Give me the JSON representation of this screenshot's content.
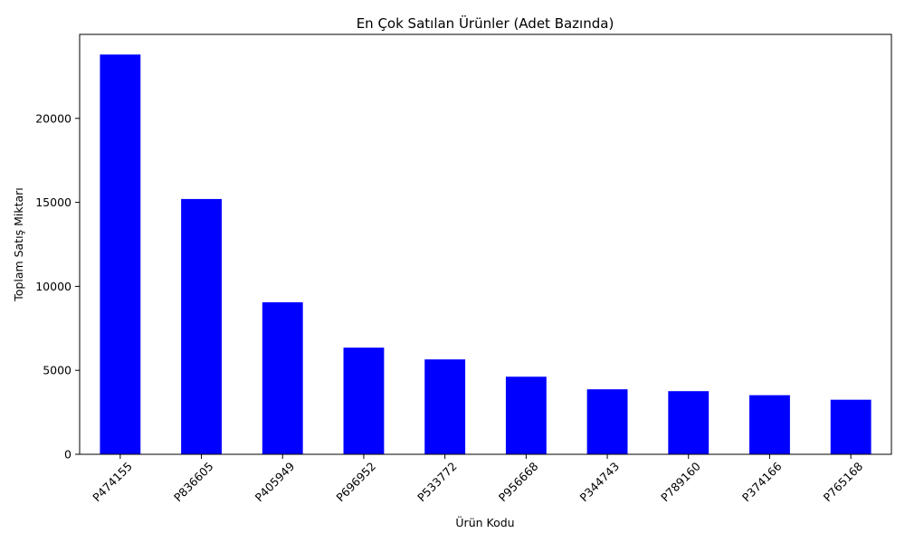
{
  "chart_data": {
    "type": "bar",
    "title": "En Çok Satılan Ürünler (Adet Bazında)",
    "xlabel": "Ürün Kodu",
    "ylabel": "Toplam Satış Miktarı",
    "categories": [
      "P474155",
      "P836605",
      "P405949",
      "P696952",
      "P533772",
      "P956668",
      "P344743",
      "P789160",
      "P374166",
      "P765168"
    ],
    "values": [
      23800,
      15200,
      9050,
      6350,
      5650,
      4620,
      3870,
      3760,
      3520,
      3250
    ],
    "ylim": [
      0,
      25000
    ],
    "yticks": [
      0,
      5000,
      10000,
      15000,
      20000
    ],
    "bar_color": "#0000ff",
    "grid": false,
    "legend": "none"
  }
}
